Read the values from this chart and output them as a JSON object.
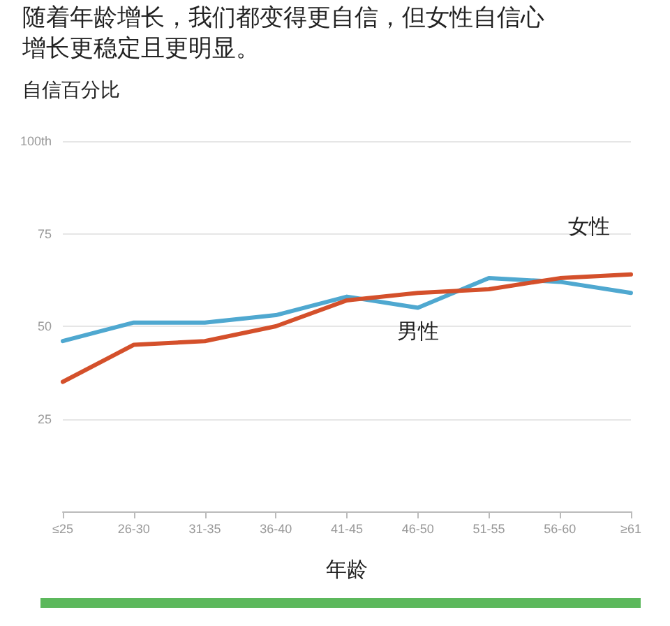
{
  "chart_data": {
    "type": "line",
    "title": "随着年龄增长，我们都变得更自信，但女性自信心增长更稳定且更明显。",
    "subtitle": "自信百分比",
    "xlabel": "年龄",
    "categories": [
      "≤25",
      "26-30",
      "31-35",
      "36-40",
      "41-45",
      "46-50",
      "51-55",
      "56-60",
      "≥61"
    ],
    "series": [
      {
        "name": "男性",
        "color": "#4fa8d0",
        "values": [
          46,
          51,
          51,
          53,
          58,
          55,
          63,
          62,
          59
        ]
      },
      {
        "name": "女性",
        "color": "#d4502b",
        "values": [
          35,
          45,
          46,
          50,
          57,
          59,
          60,
          63,
          64
        ]
      }
    ],
    "ylim": [
      0,
      100
    ],
    "yticks": [
      {
        "value": 0,
        "label": null
      },
      25,
      50,
      75,
      {
        "value": 100,
        "label": "100th"
      }
    ],
    "grid": "y",
    "marker": "none",
    "line_style": "solid"
  }
}
